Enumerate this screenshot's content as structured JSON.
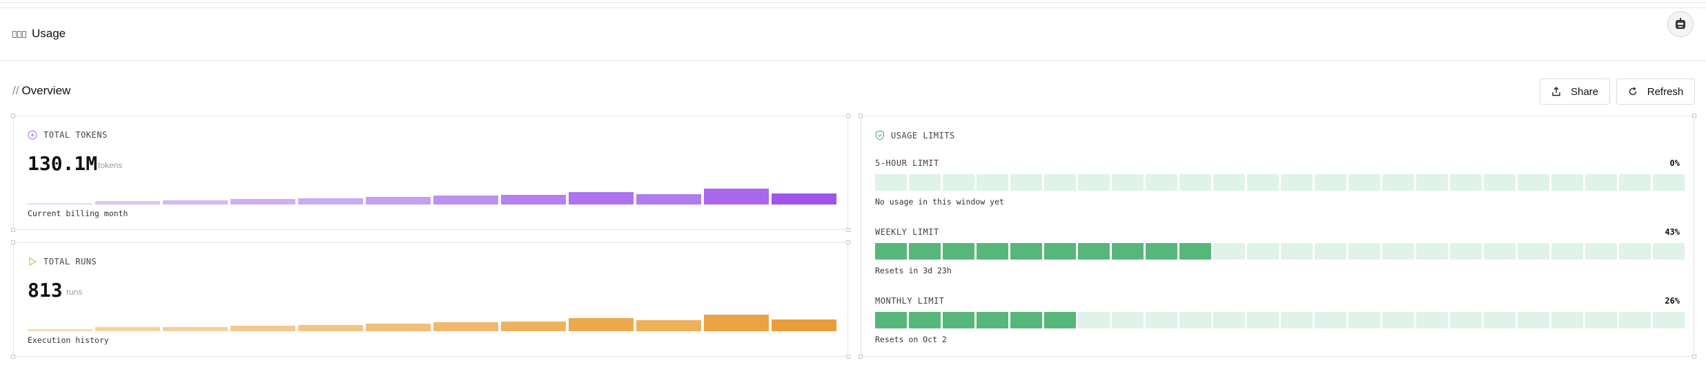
{
  "header": {
    "title": "Usage",
    "page_icon": "book-icon",
    "avatar_icon": "robot-avatar"
  },
  "overview": {
    "prefix": "//",
    "title": "Overview",
    "share_label": "Share",
    "refresh_label": "Refresh"
  },
  "total_tokens": {
    "label": "TOTAL TOKENS",
    "value": "130.1M",
    "unit": "tokens",
    "footnote": "Current billing month",
    "icon": "sparkle-circle-icon",
    "bar_levels": [
      0.08,
      0.2,
      0.22,
      0.3,
      0.34,
      0.42,
      0.5,
      0.58,
      0.7,
      0.6,
      0.9,
      0.62
    ],
    "bar_colors": [
      "#e8d6f9",
      "#dcc3f7",
      "#d5b9f6",
      "#cfaef5",
      "#cbaaf4",
      "#c59ff3",
      "#bd91f1",
      "#b581f0",
      "#ae73ee",
      "#b07cef",
      "#a867ed",
      "#9f55ea"
    ]
  },
  "total_runs": {
    "label": "TOTAL RUNS",
    "value": "813",
    "unit": "runs",
    "footnote": "Execution history",
    "icon": "play-icon",
    "bar_levels": [
      0.1,
      0.22,
      0.24,
      0.32,
      0.34,
      0.44,
      0.52,
      0.58,
      0.74,
      0.62,
      0.94,
      0.66
    ],
    "bar_colors": [
      "#f8ddb0",
      "#f6d39f",
      "#f5d09a",
      "#f3c98c",
      "#f2c583",
      "#f1bf77",
      "#f0b96c",
      "#eeb25f",
      "#eca94e",
      "#eeb058",
      "#eba243",
      "#ea9d38"
    ]
  },
  "usage_limits": {
    "label": "USAGE LIMITS",
    "icon": "shield-icon",
    "filled_color": "#57b77a",
    "empty_color": "#dff3e9",
    "segment_count": 24,
    "limits": [
      {
        "name": "5-HOUR LIMIT",
        "percent_text": "0%",
        "filled_segments": 0,
        "note": "No usage in this window yet"
      },
      {
        "name": "WEEKLY LIMIT",
        "percent_text": "43%",
        "filled_segments": 10,
        "note": "Resets in 3d 23h"
      },
      {
        "name": "MONTHLY LIMIT",
        "percent_text": "26%",
        "filled_segments": 6,
        "note": "Resets on Oct 2"
      }
    ]
  }
}
